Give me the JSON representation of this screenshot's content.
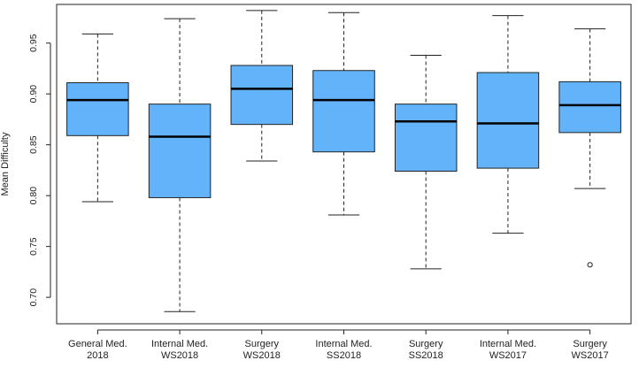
{
  "chart_data": {
    "type": "boxplot",
    "title": "",
    "xlabel": "",
    "ylabel": "Mean Difficulty",
    "ylim": [
      0.674,
      0.988
    ],
    "yticks": [
      "0.70",
      "0.75",
      "0.80",
      "0.85",
      "0.90",
      "0.95"
    ],
    "grid": false,
    "legend": "none",
    "box_color": "#63b3fb",
    "outline_color": "#222222",
    "categories": [
      [
        "General Med.",
        "2018"
      ],
      [
        "Internal Med.",
        "WS2018"
      ],
      [
        "Surgery",
        "WS2018"
      ],
      [
        "Internal Med.",
        "SS2018"
      ],
      [
        "Surgery",
        "SS2018"
      ],
      [
        "Internal Med.",
        "WS2017"
      ],
      [
        "Surgery",
        "WS2017"
      ]
    ],
    "boxes": [
      {
        "min": 0.794,
        "q1": 0.859,
        "median": 0.894,
        "q3": 0.911,
        "max": 0.959,
        "outliers": []
      },
      {
        "min": 0.686,
        "q1": 0.798,
        "median": 0.858,
        "q3": 0.89,
        "max": 0.974,
        "outliers": []
      },
      {
        "min": 0.834,
        "q1": 0.87,
        "median": 0.905,
        "q3": 0.928,
        "max": 0.982,
        "outliers": []
      },
      {
        "min": 0.781,
        "q1": 0.843,
        "median": 0.894,
        "q3": 0.923,
        "max": 0.98,
        "outliers": []
      },
      {
        "min": 0.728,
        "q1": 0.824,
        "median": 0.873,
        "q3": 0.89,
        "max": 0.938,
        "outliers": []
      },
      {
        "min": 0.763,
        "q1": 0.827,
        "median": 0.871,
        "q3": 0.921,
        "max": 0.977,
        "outliers": []
      },
      {
        "min": 0.807,
        "q1": 0.862,
        "median": 0.889,
        "q3": 0.912,
        "max": 0.964,
        "outliers": [
          0.732
        ]
      }
    ]
  }
}
